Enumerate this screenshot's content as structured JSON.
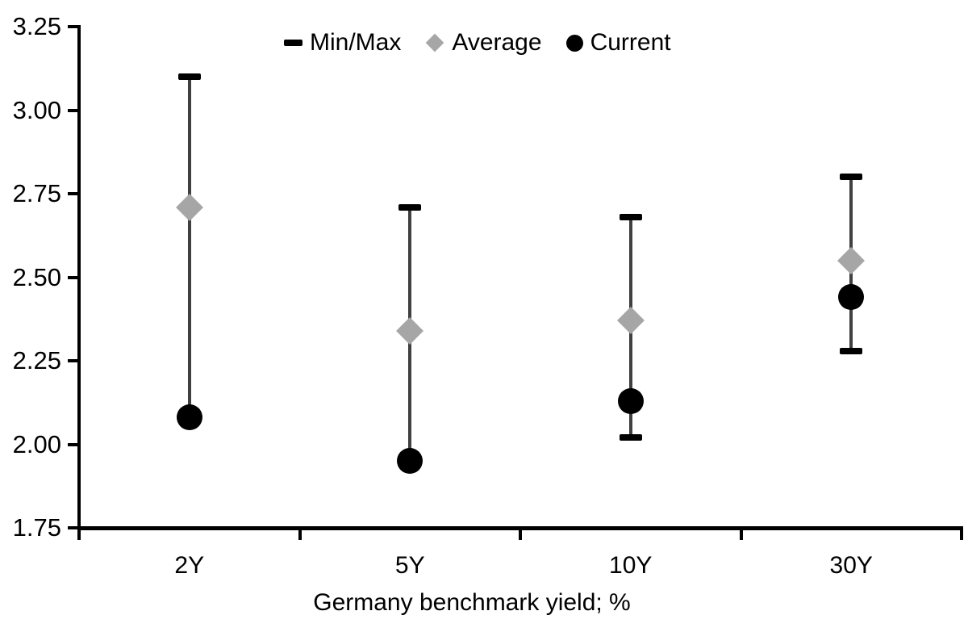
{
  "chart_data": {
    "type": "scatter",
    "subtype": "min-max-range-with-markers",
    "title": "",
    "xlabel": "Germany benchmark yield; %",
    "ylabel": "",
    "categories": [
      "2Y",
      "5Y",
      "10Y",
      "30Y"
    ],
    "ylim": [
      1.75,
      3.25
    ],
    "ytick_step": 0.25,
    "yticks": [
      "3.25",
      "3.00",
      "2.75",
      "2.50",
      "2.25",
      "2.00",
      "1.75"
    ],
    "grid": false,
    "legend": {
      "position": "top-center"
    },
    "series": [
      {
        "name": "Min/Max",
        "role": "range",
        "min": [
          2.08,
          1.95,
          2.02,
          2.28
        ],
        "max": [
          3.1,
          2.71,
          2.68,
          2.8
        ]
      },
      {
        "name": "Average",
        "role": "diamond-marker",
        "values": [
          2.71,
          2.34,
          2.37,
          2.55
        ]
      },
      {
        "name": "Current",
        "role": "circle-marker",
        "values": [
          2.08,
          1.95,
          2.13,
          2.44
        ]
      }
    ]
  },
  "styles": {
    "background": "#ffffff",
    "axis_color": "#000000",
    "text_color": "#000000",
    "range_line_color": "#404040",
    "cap_color": "#000000",
    "average_color": "#a6a6a6",
    "current_color": "#000000"
  }
}
